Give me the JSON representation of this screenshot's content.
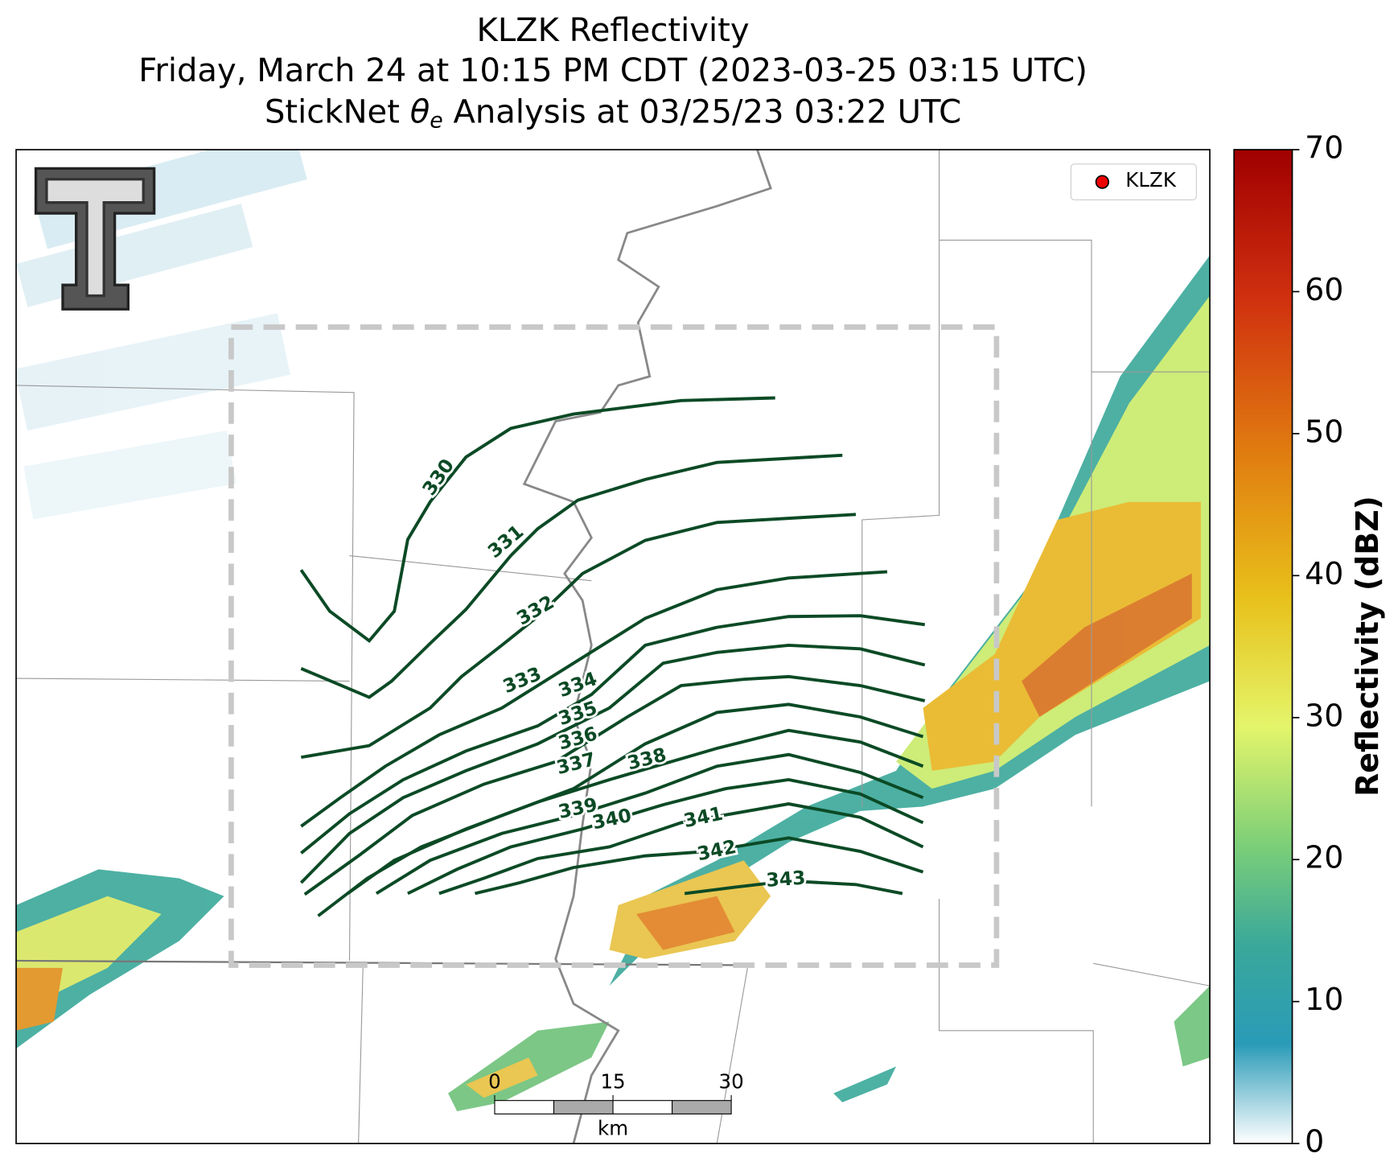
{
  "title": {
    "line1": "KLZK Reflectivity",
    "line2": "Friday, March 24 at 10:15 PM CDT (2023-03-25 03:15 UTC)",
    "line3_start": "StickNet",
    "line3_symbol": "θ",
    "line3_subscript": "e",
    "line3_end": "Analysis at 03/25/23 03:22 UTC"
  },
  "legend": {
    "label": "KLZK"
  },
  "colorbar": {
    "label": "Reflectivity (dBZ)",
    "lim": [
      0,
      70
    ],
    "ticks": [
      0,
      10,
      20,
      30,
      40,
      50,
      60,
      70
    ]
  },
  "contours": {
    "levels": [
      330,
      331,
      332,
      333,
      334,
      335,
      336,
      337,
      338,
      339,
      340,
      341,
      342,
      343
    ]
  },
  "scale_bar": {
    "lim": [
      0,
      30
    ],
    "ticks": [
      0,
      15,
      30
    ],
    "unit": "km"
  }
}
